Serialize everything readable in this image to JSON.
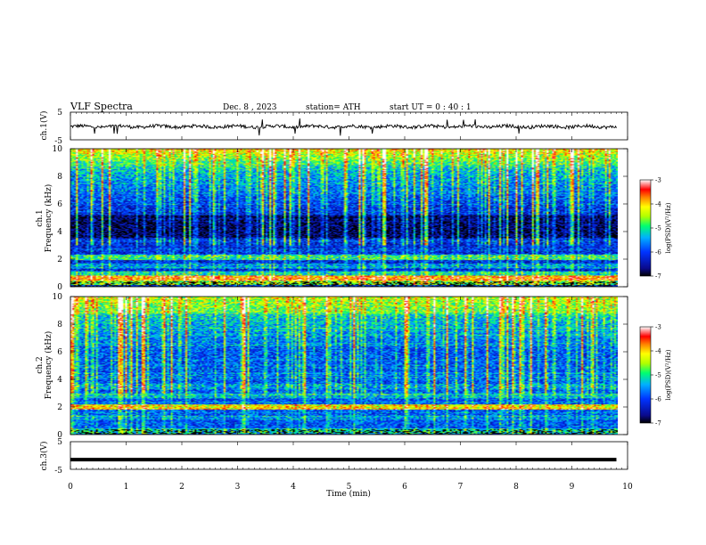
{
  "header": {
    "title": "VLF  Spectra",
    "date": "Dec. 8  , 2023",
    "station": "station= ATH",
    "start": "start  UT  =    0 : 40 : 1"
  },
  "chart_data": [
    {
      "type": "line",
      "title": "",
      "ylabel": "ch.1(V)",
      "ylim": [
        -5,
        5
      ],
      "ytick_labels": [
        "5",
        "-5"
      ],
      "xlim": [
        0,
        10
      ],
      "x_end": 9.8,
      "baseline": -0.2,
      "noise_amplitude": 1.2,
      "color": "#000000"
    },
    {
      "type": "heatmap",
      "ylabel": "ch.1\nFrequency (kHz)",
      "ylim": [
        0,
        10
      ],
      "ytick_labels": [
        "0",
        "2",
        "4",
        "6",
        "8",
        "10"
      ],
      "xlim": [
        0,
        10
      ],
      "x_end": 9.8,
      "colorbar": {
        "label": "log(PSD)(V²/Hz)",
        "range": [
          -7,
          -3
        ],
        "tick_labels": [
          "-3",
          "-4",
          "-5",
          "-6",
          "-7"
        ]
      },
      "bands_khz": [
        {
          "f": 2.1,
          "level": -5.0
        },
        {
          "f": 1.5,
          "level": -5.6
        },
        {
          "f": 0.9,
          "level": -5.2
        },
        {
          "f": 0.6,
          "level": -3.8
        },
        {
          "f": 0.3,
          "level": -4.6
        }
      ]
    },
    {
      "type": "heatmap",
      "ylabel": "ch.2\nFrequency (kHz)",
      "ylim": [
        0,
        10
      ],
      "ytick_labels": [
        "0",
        "2",
        "4",
        "6",
        "8",
        "10"
      ],
      "xlim": [
        0,
        10
      ],
      "x_end": 9.8,
      "colorbar": {
        "label": "log(PSD)(V²/Hz)",
        "range": [
          -7,
          -3
        ],
        "tick_labels": [
          "-3",
          "-4",
          "-5",
          "-6",
          "-7"
        ]
      },
      "bands_khz": [
        {
          "f": 2.0,
          "level": -4.2
        },
        {
          "f": 2.8,
          "level": -5.4
        },
        {
          "f": 3.5,
          "level": -5.5
        },
        {
          "f": 1.2,
          "level": -5.6
        },
        {
          "f": 0.2,
          "level": -5.2
        }
      ]
    },
    {
      "type": "line",
      "ylabel": "ch.3(V)",
      "ylim": [
        -5,
        5
      ],
      "ytick_labels": [
        "5",
        "-5"
      ],
      "xlim": [
        0,
        10
      ],
      "x_end": 9.8,
      "baseline": -1.5,
      "noise_amplitude": 0.0,
      "color": "#000000"
    }
  ],
  "x_axis": {
    "label": "Time  (min)",
    "tick_labels": [
      "0",
      "1",
      "2",
      "3",
      "4",
      "5",
      "6",
      "7",
      "8",
      "9",
      "10"
    ]
  }
}
